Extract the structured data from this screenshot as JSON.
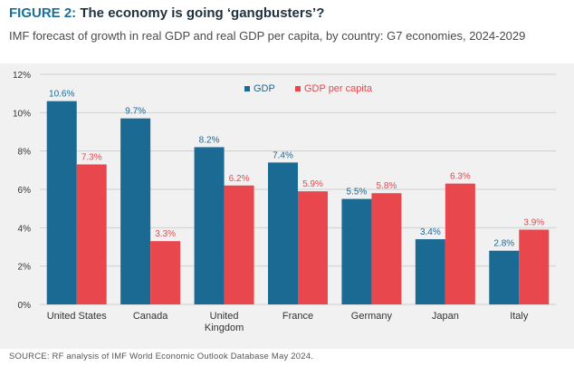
{
  "figure": {
    "label": "FIGURE 2:",
    "title": "The economy is going ‘gangbusters’?",
    "subtitle": "IMF forecast of growth in real GDP and real GDP per capita, by country: G7 economies, 2024-2029",
    "source": "SOURCE: RF analysis of IMF World Economic Outlook Database May 2024."
  },
  "colors": {
    "gdp": "#1a6a93",
    "gdp_per_capita": "#e8484d",
    "grid": "#cfcfcf",
    "axis_text": "#333333"
  },
  "chart_data": {
    "type": "bar",
    "categories": [
      "United States",
      "Canada",
      "United Kingdom",
      "France",
      "Germany",
      "Japan",
      "Italy"
    ],
    "series": [
      {
        "name": "GDP",
        "values": [
          10.6,
          9.7,
          8.2,
          7.4,
          5.5,
          3.4,
          2.8
        ],
        "labels": [
          "10.6%",
          "9.7%",
          "8.2%",
          "7.4%",
          "5.5%",
          "3.4%",
          "2.8%"
        ]
      },
      {
        "name": "GDP per capita",
        "values": [
          7.3,
          3.3,
          6.2,
          5.9,
          5.8,
          6.3,
          3.9
        ],
        "labels": [
          "7.3%",
          "3.3%",
          "6.2%",
          "5.9%",
          "5.8%",
          "6.3%",
          "3.9%"
        ]
      }
    ],
    "ylim": [
      0,
      12
    ],
    "yticks": [
      0,
      2,
      4,
      6,
      8,
      10,
      12
    ],
    "ytick_labels": [
      "0%",
      "2%",
      "4%",
      "6%",
      "8%",
      "10%",
      "12%"
    ],
    "grid": true,
    "legend": "top-center"
  }
}
